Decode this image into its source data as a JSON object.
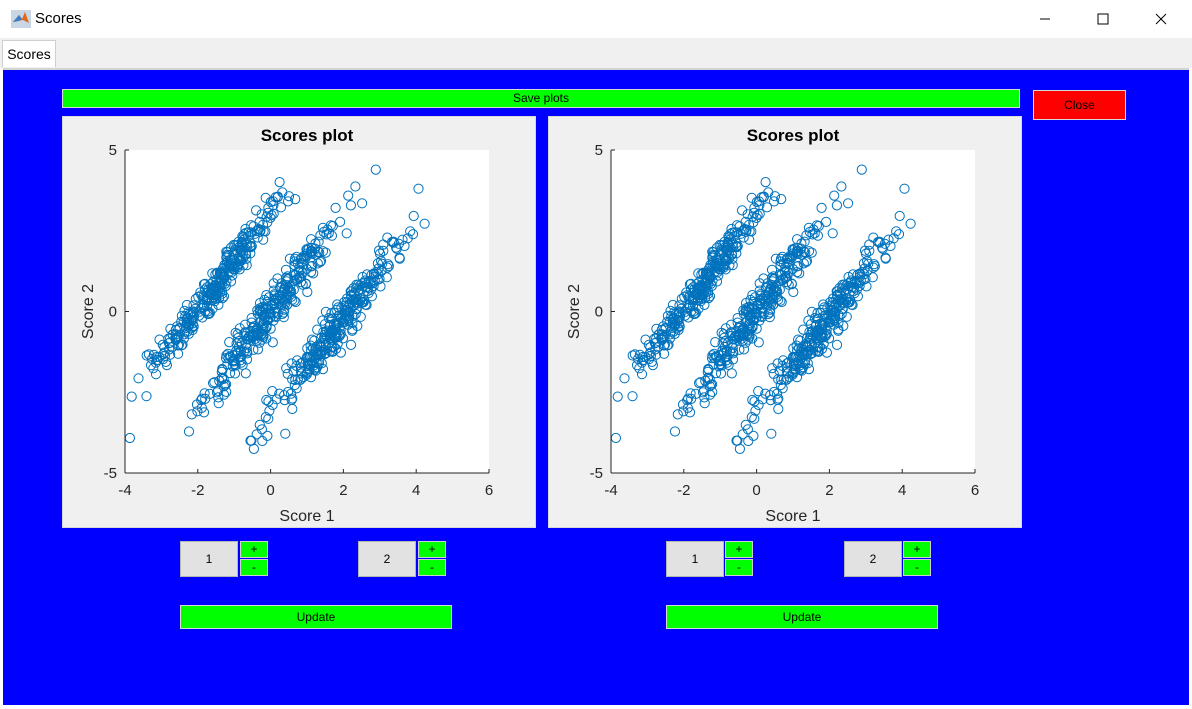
{
  "window": {
    "title": "Scores",
    "minimize_glyph": "—",
    "maximize_glyph": "☐",
    "close_glyph": "✕"
  },
  "tab": {
    "label": "Scores"
  },
  "toolbar": {
    "save_label": "Save plots",
    "close_label": "Close"
  },
  "colors": {
    "panel": "#0000ff",
    "button_green": "#00ff00",
    "button_red": "#ff0000",
    "marker": "#0072bd"
  },
  "plots": [
    {
      "x_component": "1",
      "y_component": "2",
      "plus_label": "+",
      "minus_label": "-",
      "update_label": "Update"
    },
    {
      "x_component": "1",
      "y_component": "2",
      "plus_label": "+",
      "minus_label": "-",
      "update_label": "Update"
    }
  ],
  "chart_data": [
    {
      "type": "scatter",
      "title": "Scores plot",
      "xlabel": "Score 1",
      "ylabel": "Score 2",
      "xlim": [
        -4,
        6
      ],
      "ylim": [
        -5,
        5
      ],
      "xticks": [
        "-4",
        "-2",
        "0",
        "2",
        "4",
        "6"
      ],
      "yticks": [
        "-5",
        "0",
        "5"
      ],
      "grid": false,
      "marker": "open-circle",
      "clusters": [
        {
          "center_x": -1.5,
          "center_y": 0.8,
          "n": 300
        },
        {
          "center_x": 0.0,
          "center_y": 0.0,
          "n": 300
        },
        {
          "center_x": 1.8,
          "center_y": -0.5,
          "n": 300
        }
      ]
    },
    {
      "type": "scatter",
      "title": "Scores plot",
      "xlabel": "Score 1",
      "ylabel": "Score 2",
      "xlim": [
        -4,
        6
      ],
      "ylim": [
        -5,
        5
      ],
      "xticks": [
        "-4",
        "-2",
        "0",
        "2",
        "4",
        "6"
      ],
      "yticks": [
        "-5",
        "0",
        "5"
      ],
      "grid": false,
      "marker": "open-circle",
      "clusters": [
        {
          "center_x": -1.5,
          "center_y": 0.8,
          "n": 300
        },
        {
          "center_x": 0.0,
          "center_y": 0.0,
          "n": 300
        },
        {
          "center_x": 1.8,
          "center_y": -0.5,
          "n": 300
        }
      ]
    }
  ]
}
